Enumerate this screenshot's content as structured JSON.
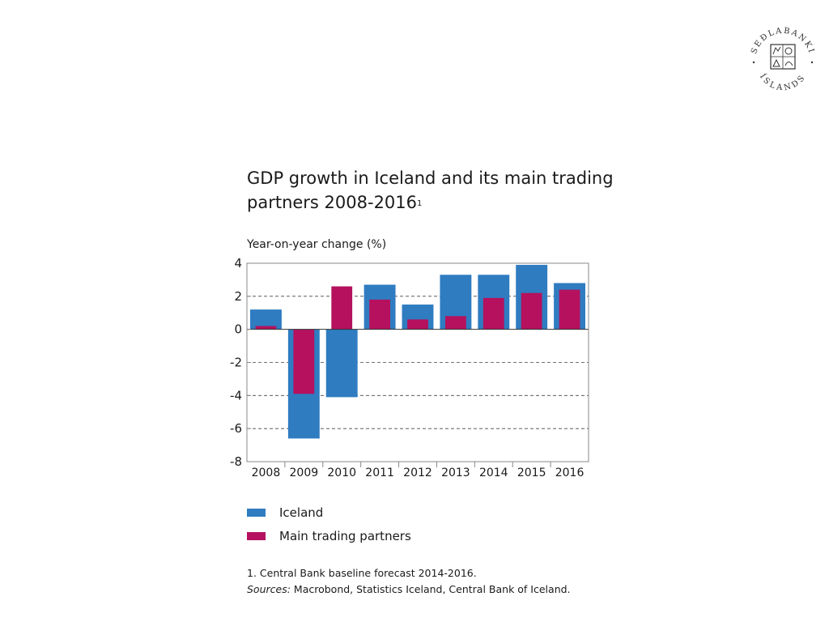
{
  "colors": {
    "iceland": "#2f7cc1",
    "partners": "#b5115e",
    "axis": "#888888",
    "grid": "#444444"
  },
  "logo": {
    "text": "SEÐLABANKI ÍSLANDS",
    "icon": "central-bank-seal-icon"
  },
  "chart_data": {
    "type": "bar",
    "title": "GDP growth in Iceland and its main trading partners 2008-2016",
    "title_footnote_mark": "1",
    "ylabel": "Year-on-year change (%)",
    "xlabel": "",
    "ylim": [
      -8,
      4
    ],
    "yticks": [
      4,
      2,
      0,
      -2,
      -4,
      -6,
      -8
    ],
    "ytick_labels": [
      "4",
      "2",
      "0",
      "-2",
      "-4",
      "-6",
      "-8"
    ],
    "grid": true,
    "categories": [
      "2008",
      "2009",
      "2010",
      "2011",
      "2012",
      "2013",
      "2014",
      "2015",
      "2016"
    ],
    "series": [
      {
        "name": "Iceland",
        "values": [
          1.2,
          -6.6,
          -4.1,
          2.7,
          1.5,
          3.3,
          3.3,
          3.9,
          2.8
        ]
      },
      {
        "name": "Main trading partners",
        "values": [
          0.2,
          -3.9,
          2.6,
          1.8,
          0.6,
          0.8,
          1.9,
          2.2,
          2.4
        ]
      }
    ],
    "legend": "below"
  },
  "legend": {
    "iceland": "Iceland",
    "partners": "Main trading partners"
  },
  "footnotes": {
    "note1": "1. Central Bank baseline forecast 2014-2016.",
    "sources_label": "Sources:",
    "sources_text": " Macrobond, Statistics Iceland, Central Bank of Iceland."
  }
}
